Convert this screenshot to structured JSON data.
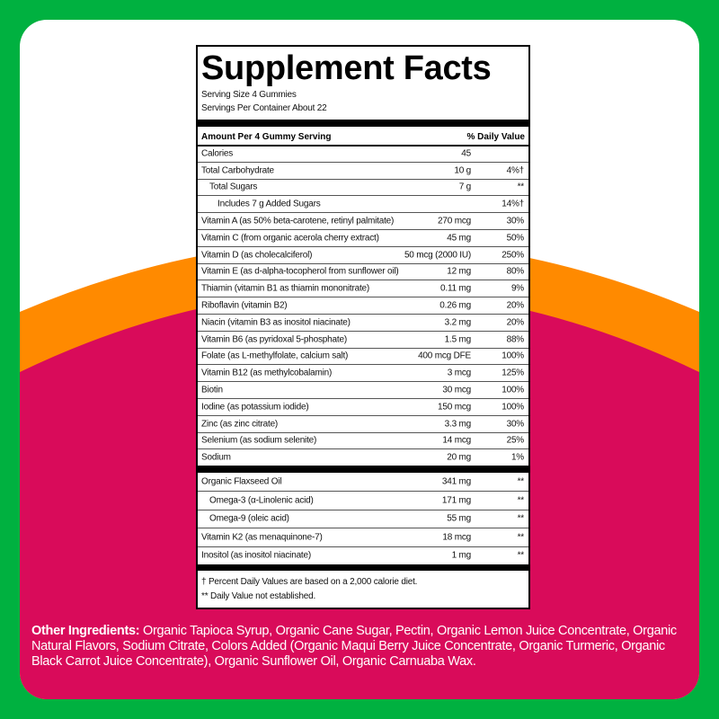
{
  "colors": {
    "border": "#00b140",
    "orange": "#ff8a00",
    "magenta": "#d90b5a",
    "panel": "#ffffff"
  },
  "label": {
    "title": "Supplement Facts",
    "serving_size": "Serving Size 4 Gummies",
    "servings_per_container": "Servings Per Container About 22",
    "header_amount": "Amount Per 4 Gummy Serving",
    "header_dv": "% Daily Value",
    "rows": [
      {
        "name": "Calories",
        "amount": "45",
        "dv": "",
        "indent": 0
      },
      {
        "name": "Total Carbohydrate",
        "amount": "10 g",
        "dv": "4%†",
        "indent": 0
      },
      {
        "name": "Total Sugars",
        "amount": "7 g",
        "dv": "**",
        "indent": 1
      },
      {
        "name": "Includes 7 g Added Sugars",
        "amount": "",
        "dv": "14%†",
        "indent": 2
      },
      {
        "name": "Vitamin A (as 50% beta-carotene, retinyl palmitate)",
        "amount": "270 mcg",
        "dv": "30%",
        "indent": 0
      },
      {
        "name": "Vitamin C (from organic acerola cherry extract)",
        "amount": "45 mg",
        "dv": "50%",
        "indent": 0
      },
      {
        "name": "Vitamin D (as cholecalciferol)",
        "amount": "50 mcg (2000 IU)",
        "dv": "250%",
        "indent": 0
      },
      {
        "name": "Vitamin E (as d-alpha-tocopherol from sunflower oil)",
        "amount": "12 mg",
        "dv": "80%",
        "indent": 0
      },
      {
        "name": "Thiamin (vitamin B1 as thiamin mononitrate)",
        "amount": "0.11 mg",
        "dv": "9%",
        "indent": 0
      },
      {
        "name": "Riboflavin (vitamin B2)",
        "amount": "0.26 mg",
        "dv": "20%",
        "indent": 0
      },
      {
        "name": "Niacin (vitamin B3 as inositol niacinate)",
        "amount": "3.2 mg",
        "dv": "20%",
        "indent": 0
      },
      {
        "name": "Vitamin B6 (as pyridoxal 5-phosphate)",
        "amount": "1.5 mg",
        "dv": "88%",
        "indent": 0
      },
      {
        "name": "Folate (as L-methylfolate, calcium salt)",
        "amount": "400 mcg DFE",
        "dv": "100%",
        "indent": 0
      },
      {
        "name": "Vitamin B12 (as methylcobalamin)",
        "amount": "3 mcg",
        "dv": "125%",
        "indent": 0
      },
      {
        "name": "Biotin",
        "amount": "30 mcg",
        "dv": "100%",
        "indent": 0
      },
      {
        "name": "Iodine (as potassium iodide)",
        "amount": "150 mcg",
        "dv": "100%",
        "indent": 0
      },
      {
        "name": "Zinc (as zinc citrate)",
        "amount": "3.3 mg",
        "dv": "30%",
        "indent": 0
      },
      {
        "name": "Selenium (as sodium selenite)",
        "amount": "14 mcg",
        "dv": "25%",
        "indent": 0
      },
      {
        "name": "Sodium",
        "amount": "20 mg",
        "dv": "1%",
        "indent": 0
      }
    ],
    "rows2": [
      {
        "name": "Organic Flaxseed Oil",
        "amount": "341 mg",
        "dv": "**",
        "indent": 0
      },
      {
        "name": "Omega-3 (α-Linolenic acid)",
        "amount": "171 mg",
        "dv": "**",
        "indent": 1
      },
      {
        "name": "Omega-9 (oleic acid)",
        "amount": "55 mg",
        "dv": "**",
        "indent": 1
      },
      {
        "name": "Vitamin K2 (as menaquinone-7)",
        "amount": "18 mcg",
        "dv": "**",
        "indent": 0
      },
      {
        "name": "Inositol (as inositol niacinate)",
        "amount": "1 mg",
        "dv": "**",
        "indent": 0
      }
    ],
    "footnote1": "† Percent Daily Values are based on a 2,000 calorie diet.",
    "footnote2": "** Daily Value not established."
  },
  "other_ingredients": {
    "label": "Other Ingredients:",
    "text": " Organic Tapioca Syrup, Organic Cane Sugar, Pectin, Organic Lemon Juice Concentrate, Organic Natural Flavors, Sodium Citrate, Colors Added (Organic Maqui Berry Juice Concentrate, Organic Turmeric, Organic Black Carrot Juice Concentrate), Organic Sunflower Oil, Organic Carnuaba Wax."
  }
}
